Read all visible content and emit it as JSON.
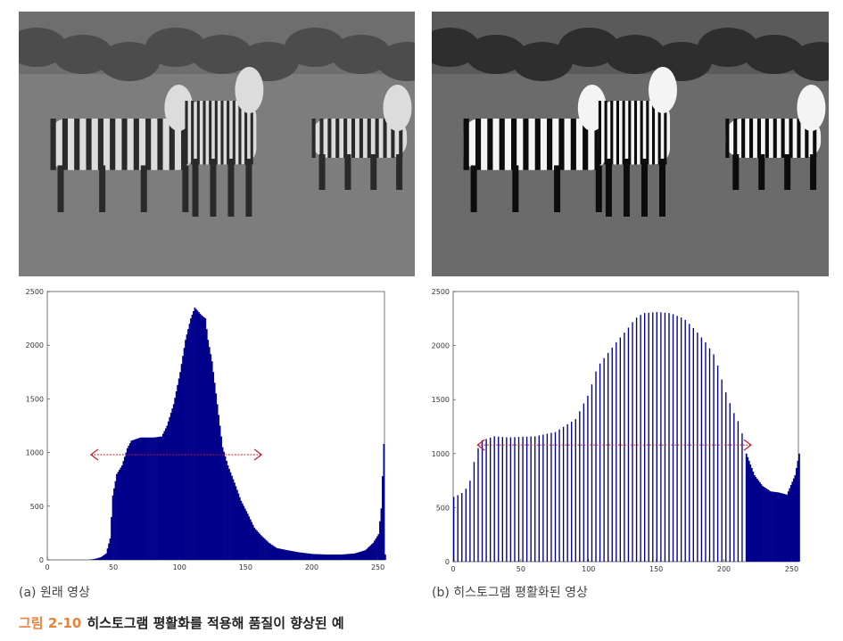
{
  "panels": [
    {
      "caption": "(a) 원래 영상",
      "photo_tone": "low-contrast"
    },
    {
      "caption": "(b) 히스토그램 평활화된 영상",
      "photo_tone": "high-contrast"
    }
  ],
  "figure": {
    "number": "그림 2-10",
    "title": "히스토그램 평활화를 적용해 품질이 향상된 예"
  },
  "colors": {
    "bar": "#00008b",
    "arrow": "#c0202a",
    "figure_number": "#e8823a"
  },
  "chart_data": [
    {
      "type": "bar",
      "title": "",
      "xlabel": "",
      "ylabel": "",
      "xlim": [
        0,
        255
      ],
      "ylim": [
        0,
        2500
      ],
      "xticks": [
        0,
        50,
        100,
        150,
        200,
        250
      ],
      "yticks": [
        0,
        500,
        1000,
        1500,
        2000,
        2500
      ],
      "grid": false,
      "spread_arrow": {
        "x_from": 33,
        "x_to": 162,
        "y": 980
      },
      "profile": [
        [
          0,
          0
        ],
        [
          30,
          0
        ],
        [
          35,
          8
        ],
        [
          40,
          25
        ],
        [
          44,
          60
        ],
        [
          47,
          200
        ],
        [
          49,
          600
        ],
        [
          52,
          800
        ],
        [
          56,
          880
        ],
        [
          60,
          1040
        ],
        [
          63,
          1110
        ],
        [
          70,
          1140
        ],
        [
          80,
          1140
        ],
        [
          86,
          1150
        ],
        [
          90,
          1250
        ],
        [
          95,
          1450
        ],
        [
          100,
          1750
        ],
        [
          104,
          2050
        ],
        [
          108,
          2250
        ],
        [
          111,
          2350
        ],
        [
          116,
          2280
        ],
        [
          119,
          2250
        ],
        [
          121,
          2050
        ],
        [
          124,
          1850
        ],
        [
          128,
          1450
        ],
        [
          132,
          1050
        ],
        [
          136,
          880
        ],
        [
          141,
          720
        ],
        [
          146,
          550
        ],
        [
          151,
          430
        ],
        [
          156,
          300
        ],
        [
          161,
          230
        ],
        [
          167,
          160
        ],
        [
          173,
          110
        ],
        [
          181,
          90
        ],
        [
          190,
          70
        ],
        [
          200,
          55
        ],
        [
          210,
          50
        ],
        [
          222,
          50
        ],
        [
          232,
          60
        ],
        [
          240,
          90
        ],
        [
          246,
          160
        ],
        [
          250,
          240
        ],
        [
          252,
          480
        ],
        [
          254,
          1080
        ],
        [
          255,
          50
        ]
      ]
    },
    {
      "type": "bar",
      "title": "",
      "xlabel": "",
      "ylabel": "",
      "xlim": [
        0,
        255
      ],
      "ylim": [
        0,
        2500
      ],
      "xticks": [
        0,
        50,
        100,
        150,
        200,
        250
      ],
      "yticks": [
        0,
        500,
        1000,
        1500,
        2000,
        2500
      ],
      "grid": false,
      "spread_arrow": {
        "x_from": 18,
        "x_to": 220,
        "y": 1080
      },
      "profile": [
        [
          0,
          600
        ],
        [
          4,
          620
        ],
        [
          8,
          650
        ],
        [
          12,
          750
        ],
        [
          16,
          980
        ],
        [
          20,
          1120
        ],
        [
          30,
          1160
        ],
        [
          40,
          1150
        ],
        [
          60,
          1160
        ],
        [
          75,
          1200
        ],
        [
          90,
          1320
        ],
        [
          100,
          1560
        ],
        [
          106,
          1800
        ],
        [
          112,
          1900
        ],
        [
          120,
          2030
        ],
        [
          128,
          2150
        ],
        [
          134,
          2250
        ],
        [
          140,
          2300
        ],
        [
          150,
          2310
        ],
        [
          160,
          2300
        ],
        [
          170,
          2250
        ],
        [
          178,
          2150
        ],
        [
          186,
          2030
        ],
        [
          193,
          1900
        ],
        [
          200,
          1600
        ],
        [
          206,
          1400
        ],
        [
          212,
          1250
        ],
        [
          216,
          1000
        ],
        [
          222,
          800
        ],
        [
          228,
          700
        ],
        [
          234,
          650
        ],
        [
          240,
          640
        ],
        [
          246,
          620
        ],
        [
          252,
          800
        ],
        [
          255,
          1000
        ]
      ],
      "sparse_until": 216
    }
  ]
}
